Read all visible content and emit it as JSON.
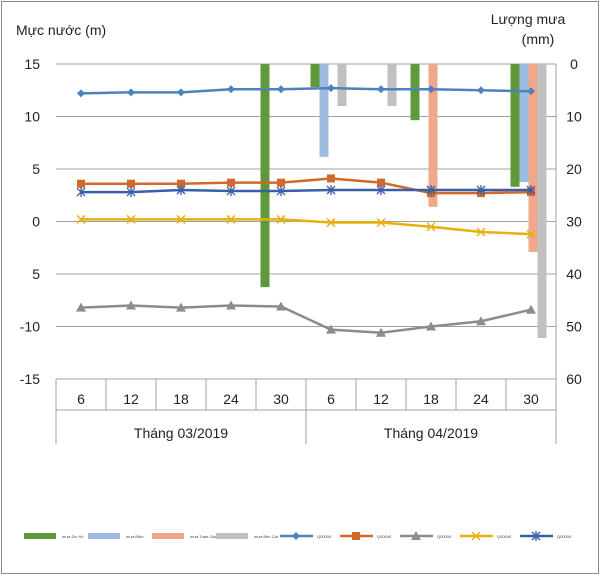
{
  "chart_data": {
    "type": "bar+line",
    "ylabel": "Mực nước (m)",
    "y2label_line1": "Lượng mưa",
    "y2label_line2": "(mm)",
    "ylim": [
      -15,
      15
    ],
    "y2lim": [
      0,
      60
    ],
    "y2_inverted": true,
    "yticks": [
      "15",
      "10",
      "5",
      "0",
      "5",
      "-10",
      "-15"
    ],
    "y2ticks": [
      "0",
      "10",
      "20",
      "30",
      "40",
      "50",
      "60"
    ],
    "categories": [
      "6",
      "12",
      "18",
      "24",
      "30",
      "6",
      "12",
      "18",
      "24",
      "30"
    ],
    "groups": [
      "Tháng 03/2019",
      "Tháng 04/2019"
    ],
    "grid": true,
    "legend_position": "bottom",
    "bar_series": [
      {
        "name": "mưa Sìn Hồ",
        "color": "#5e9a3c",
        "values": [
          0,
          0,
          0,
          0,
          42.5,
          4.4,
          0,
          10.7,
          0,
          23.4
        ]
      },
      {
        "name": "mưa Điện",
        "color": "#9dbde0",
        "values": [
          0,
          0,
          0,
          0,
          0,
          17.7,
          0,
          0,
          0,
          22.5
        ]
      },
      {
        "name": "mưa Tuần Giáo",
        "color": "#f0a88c",
        "values": [
          0,
          0,
          0,
          0,
          0,
          0,
          0,
          27.2,
          0,
          35.8
        ]
      },
      {
        "name": "mưa Bến Cát",
        "color": "#c0c0c0",
        "values": [
          0,
          0,
          0,
          0,
          0,
          8,
          8,
          0,
          0,
          52.2
        ]
      }
    ],
    "line_series": [
      {
        "name": "Q00000",
        "color": "#4f81bd",
        "marker": "diamond",
        "values": [
          12.2,
          12.3,
          12.3,
          12.6,
          12.6,
          12.7,
          12.6,
          12.6,
          12.5,
          12.4
        ]
      },
      {
        "name": "Q00000",
        "color": "#d0692a",
        "marker": "square",
        "values": [
          3.6,
          3.6,
          3.6,
          3.7,
          3.7,
          4.1,
          3.7,
          2.7,
          2.7,
          2.8
        ]
      },
      {
        "name": "Q00000",
        "color": "#8c8c8c",
        "marker": "triangle",
        "values": [
          -8.2,
          -8.0,
          -8.2,
          -8.0,
          -8.1,
          -10.3,
          -10.6,
          -10.0,
          -9.5,
          -8.4
        ]
      },
      {
        "name": "Q00000",
        "color": "#e8b00c",
        "marker": "x",
        "values": [
          0.2,
          0.2,
          0.2,
          0.2,
          0.2,
          -0.1,
          -0.1,
          -0.5,
          -1.0,
          -1.2
        ]
      },
      {
        "name": "Q00000",
        "color": "#3a5ea8",
        "marker": "star",
        "values": [
          2.8,
          2.8,
          3.0,
          2.9,
          2.9,
          3.0,
          3.0,
          3.0,
          3.0,
          3.0
        ]
      }
    ]
  }
}
